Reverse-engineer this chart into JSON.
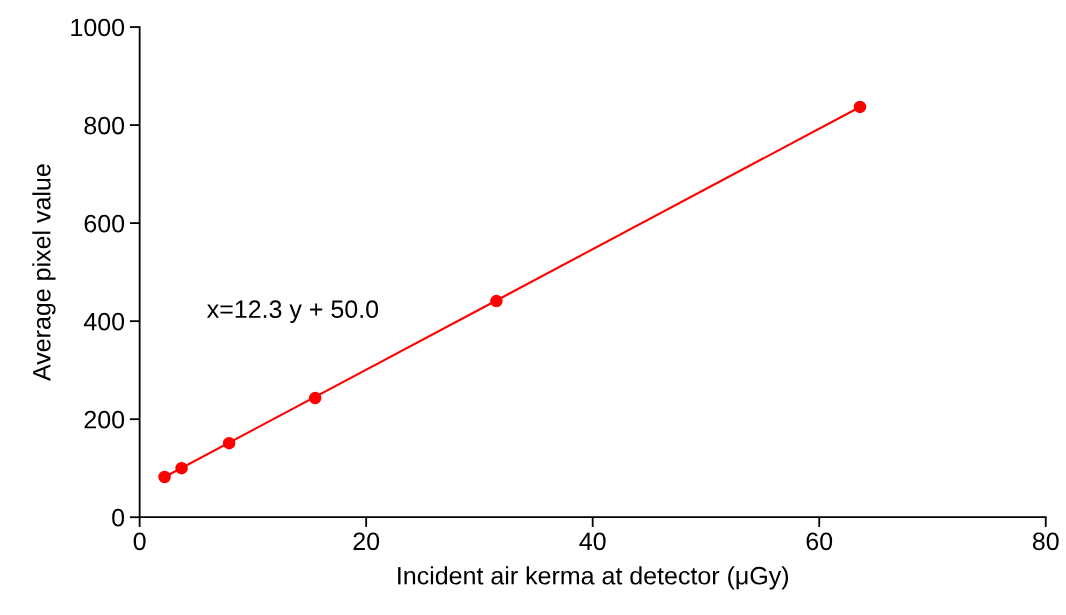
{
  "chart_data": {
    "type": "scatter",
    "xlabel": "Incident air kerma at detector (μGy)",
    "ylabel": "Average pixel value",
    "annotations": [
      "x=12.3 y + 50.0"
    ],
    "xlim": [
      0,
      80
    ],
    "xticks": [
      0,
      20,
      40,
      60,
      80
    ],
    "ylim": [
      0,
      1000
    ],
    "yticks": [
      0,
      200,
      400,
      600,
      800,
      1000
    ],
    "grid": false,
    "legend": false,
    "series": [
      {
        "type": "line",
        "color": "#ff0000",
        "x": [
          2.2,
          63.6
        ],
        "values": [
          82,
          837
        ]
      },
      {
        "marker": "circle",
        "color": "#ff0000",
        "x": [
          2.2,
          3.7,
          7.9,
          15.5,
          31.5,
          63.6
        ],
        "values": [
          82,
          100,
          151,
          243,
          441,
          837
        ]
      }
    ]
  }
}
